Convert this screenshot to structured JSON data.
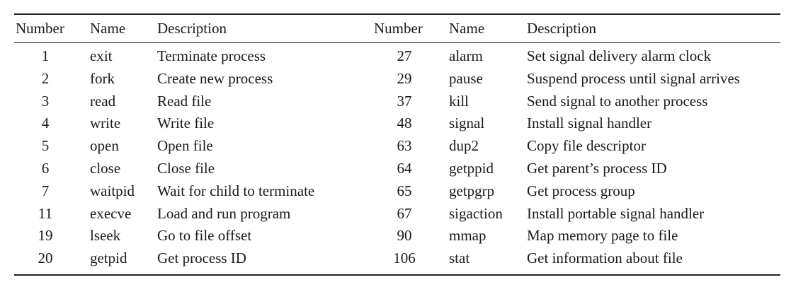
{
  "table": {
    "headers": [
      "Number",
      "Name",
      "Description",
      "Number",
      "Name",
      "Description"
    ],
    "rows": [
      {
        "left": {
          "number": "1",
          "name": "exit",
          "description": "Terminate process"
        },
        "right": {
          "number": "27",
          "name": "alarm",
          "description": "Set signal delivery alarm clock"
        }
      },
      {
        "left": {
          "number": "2",
          "name": "fork",
          "description": "Create new process"
        },
        "right": {
          "number": "29",
          "name": "pause",
          "description": "Suspend process until signal arrives"
        }
      },
      {
        "left": {
          "number": "3",
          "name": "read",
          "description": "Read file"
        },
        "right": {
          "number": "37",
          "name": "kill",
          "description": "Send signal to another process"
        }
      },
      {
        "left": {
          "number": "4",
          "name": "write",
          "description": "Write file"
        },
        "right": {
          "number": "48",
          "name": "signal",
          "description": "Install signal handler"
        }
      },
      {
        "left": {
          "number": "5",
          "name": "open",
          "description": "Open file"
        },
        "right": {
          "number": "63",
          "name": "dup2",
          "description": "Copy file descriptor"
        }
      },
      {
        "left": {
          "number": "6",
          "name": "close",
          "description": "Close file"
        },
        "right": {
          "number": "64",
          "name": "getppid",
          "description": "Get parent’s process ID"
        }
      },
      {
        "left": {
          "number": "7",
          "name": "waitpid",
          "description": "Wait for child to terminate"
        },
        "right": {
          "number": "65",
          "name": "getpgrp",
          "description": "Get process group"
        }
      },
      {
        "left": {
          "number": "11",
          "name": "execve",
          "description": "Load and run program"
        },
        "right": {
          "number": "67",
          "name": "sigaction",
          "description": "Install portable signal handler"
        }
      },
      {
        "left": {
          "number": "19",
          "name": "lseek",
          "description": "Go to file offset"
        },
        "right": {
          "number": "90",
          "name": "mmap",
          "description": "Map memory page to file"
        }
      },
      {
        "left": {
          "number": "20",
          "name": "getpid",
          "description": "Get process ID"
        },
        "right": {
          "number": "106",
          "name": "stat",
          "description": "Get information about file"
        }
      }
    ]
  }
}
